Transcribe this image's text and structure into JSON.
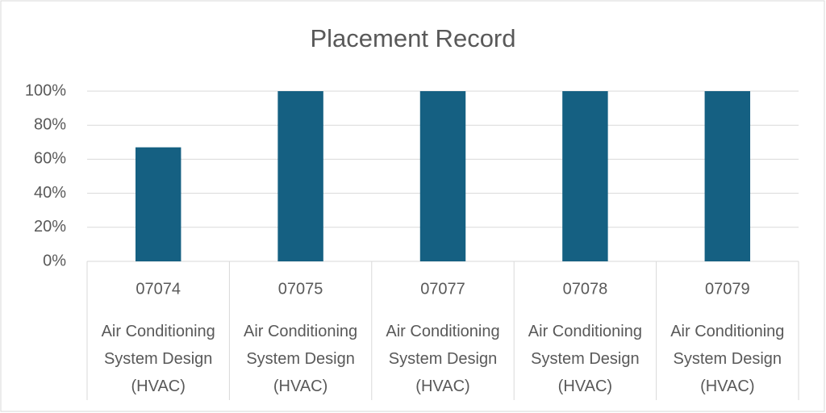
{
  "chart_data": {
    "type": "bar",
    "title": "Placement Record",
    "categories": [
      "07074",
      "07075",
      "07077",
      "07078",
      "07079"
    ],
    "category_groups": [
      "Air Conditioning System Design (HVAC)",
      "Air Conditioning System Design (HVAC)",
      "Air Conditioning System Design (HVAC)",
      "Air Conditioning System Design (HVAC)",
      "Air Conditioning System Design (HVAC)"
    ],
    "values": [
      67,
      100,
      100,
      100,
      100
    ],
    "color": "#156082",
    "ylim": [
      0,
      100
    ],
    "yticks": [
      {
        "value": 0,
        "label": "0%"
      },
      {
        "value": 20,
        "label": "20%"
      },
      {
        "value": 40,
        "label": "40%"
      },
      {
        "value": 60,
        "label": "60%"
      },
      {
        "value": 80,
        "label": "80%"
      },
      {
        "value": 100,
        "label": "100%"
      }
    ],
    "grid": true
  }
}
